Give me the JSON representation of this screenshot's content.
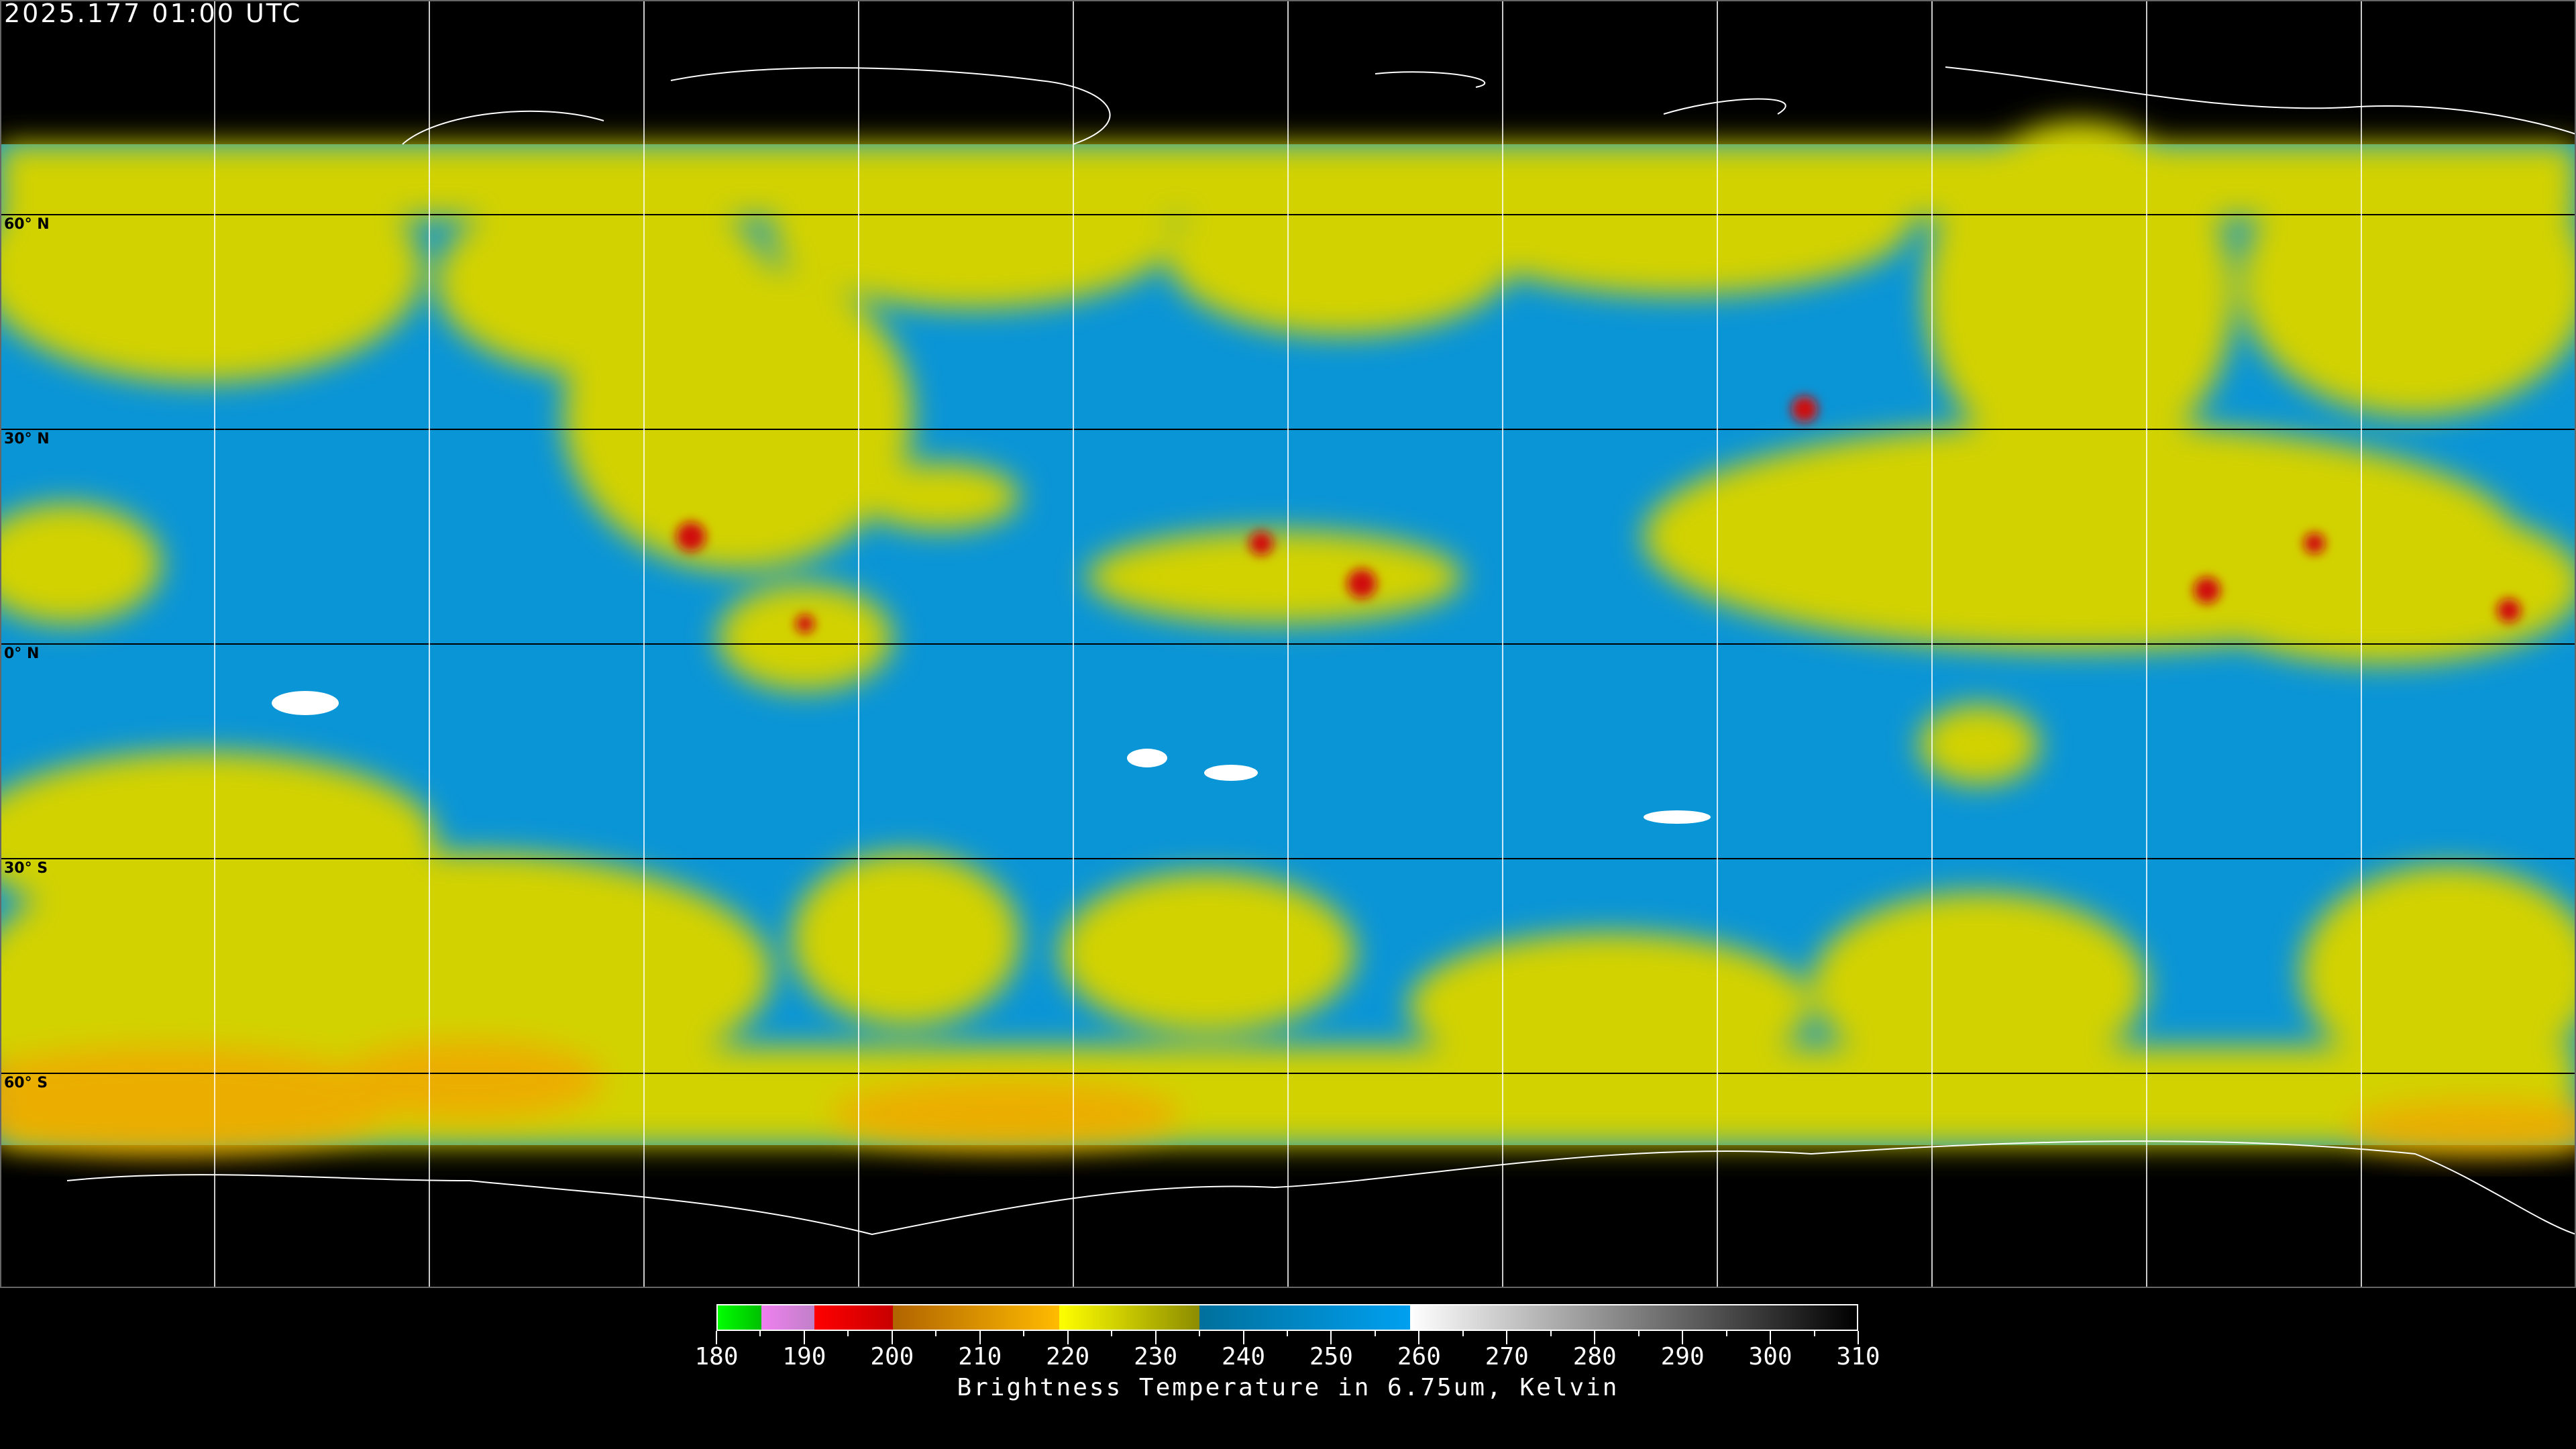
{
  "header": {
    "timestamp": "2025.177 01:00 UTC"
  },
  "map": {
    "projection": "equirectangular",
    "grid_spacing_degrees": 30,
    "lat_labels": [
      "60° N",
      "30° N",
      "0° N",
      "30° S",
      "60° S"
    ],
    "colors": {
      "ocean_dry": "#0a95d6",
      "moist": "#d2d200",
      "cold_tops": "#f0a800",
      "deep_convection": "#d01010",
      "background": "#000000",
      "coastline": "#ffffff",
      "grid": "#ffffff"
    }
  },
  "colorbar": {
    "ticks": [
      "180",
      "190",
      "200",
      "210",
      "220",
      "230",
      "240",
      "250",
      "260",
      "270",
      "280",
      "290",
      "300",
      "310"
    ],
    "range": [
      180,
      310
    ],
    "label": "Brightness Temperature in 6.75um, Kelvin",
    "segments": [
      {
        "from": 180,
        "to": 185,
        "colors": [
          "#00ff00",
          "#00c000"
        ]
      },
      {
        "from": 185,
        "to": 191,
        "colors": [
          "#f080f0",
          "#c080c8"
        ]
      },
      {
        "from": 191,
        "to": 200,
        "colors": [
          "#ff0000",
          "#c80000"
        ]
      },
      {
        "from": 200,
        "to": 219,
        "colors": [
          "#b06400",
          "#ffbb00"
        ]
      },
      {
        "from": 219,
        "to": 235,
        "colors": [
          "#ffff00",
          "#8c8c00"
        ]
      },
      {
        "from": 235,
        "to": 259,
        "colors": [
          "#00709c",
          "#00a0f0"
        ]
      },
      {
        "from": 259,
        "to": 310,
        "colors": [
          "#ffffff",
          "#000000"
        ]
      }
    ]
  }
}
